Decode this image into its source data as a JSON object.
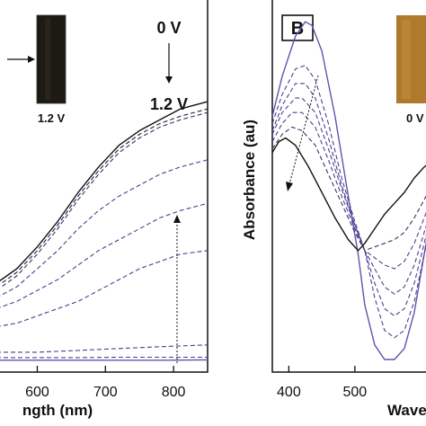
{
  "panel_b": {
    "label": "B",
    "inset_caption": "0 V"
  },
  "chart_data": [
    {
      "type": "line",
      "title": "",
      "xlabel": "ngth (nm)",
      "ylabel": "",
      "xlim": [
        540,
        850
      ],
      "ylim": [
        0,
        1
      ],
      "xticks": [
        600,
        700,
        800
      ],
      "grid": false,
      "inset_caption": "1.2 V",
      "voltage_start": "0 V",
      "voltage_end": "1.2 V",
      "series": [
        {
          "style": "solid",
          "color": "#111111",
          "x": [
            540,
            570,
            600,
            630,
            660,
            690,
            720,
            750,
            780,
            810,
            850
          ],
          "y": [
            0.22,
            0.26,
            0.32,
            0.39,
            0.47,
            0.54,
            0.6,
            0.64,
            0.67,
            0.7,
            0.72
          ]
        },
        {
          "style": "dashed",
          "color": "#222244",
          "x": [
            540,
            570,
            600,
            630,
            660,
            690,
            720,
            750,
            780,
            810,
            850
          ],
          "y": [
            0.21,
            0.25,
            0.31,
            0.38,
            0.46,
            0.53,
            0.59,
            0.63,
            0.66,
            0.68,
            0.7
          ]
        },
        {
          "style": "dashed",
          "color": "#333366",
          "x": [
            540,
            570,
            600,
            630,
            660,
            690,
            720,
            750,
            780,
            810,
            850
          ],
          "y": [
            0.2,
            0.24,
            0.3,
            0.37,
            0.45,
            0.52,
            0.58,
            0.62,
            0.65,
            0.67,
            0.69
          ]
        },
        {
          "style": "dashed",
          "color": "#4a3f8f",
          "x": [
            540,
            570,
            600,
            630,
            660,
            690,
            720,
            750,
            780,
            810,
            850
          ],
          "y": [
            0.18,
            0.21,
            0.26,
            0.31,
            0.37,
            0.42,
            0.46,
            0.49,
            0.52,
            0.54,
            0.56
          ]
        },
        {
          "style": "dashed",
          "color": "#4a3f8f",
          "x": [
            540,
            570,
            600,
            630,
            660,
            690,
            720,
            750,
            780,
            810,
            850
          ],
          "y": [
            0.15,
            0.17,
            0.2,
            0.23,
            0.27,
            0.31,
            0.34,
            0.37,
            0.4,
            0.42,
            0.44
          ]
        },
        {
          "style": "dashed",
          "color": "#4a3f8f",
          "x": [
            540,
            570,
            600,
            630,
            660,
            690,
            720,
            750,
            780,
            810,
            850
          ],
          "y": [
            0.1,
            0.11,
            0.13,
            0.15,
            0.17,
            0.2,
            0.23,
            0.26,
            0.28,
            0.3,
            0.31
          ]
        },
        {
          "style": "dashed",
          "color": "#4a3f8f",
          "x": [
            540,
            600,
            660,
            720,
            780,
            850
          ],
          "y": [
            0.03,
            0.03,
            0.035,
            0.04,
            0.045,
            0.05
          ]
        },
        {
          "style": "dashed",
          "color": "#4a3f8f",
          "x": [
            540,
            600,
            660,
            720,
            780,
            850
          ],
          "y": [
            0.015,
            0.015,
            0.015,
            0.016,
            0.016,
            0.016
          ]
        },
        {
          "style": "solid",
          "color": "#5b55b0",
          "x": [
            540,
            600,
            660,
            720,
            780,
            850
          ],
          "y": [
            0.008,
            0.008,
            0.008,
            0.008,
            0.008,
            0.009
          ]
        }
      ]
    },
    {
      "type": "line",
      "title": "",
      "xlabel": "Wave",
      "ylabel": "Absorbance (au)",
      "xlim": [
        375,
        620
      ],
      "ylim": [
        0,
        1
      ],
      "xticks": [
        400,
        500
      ],
      "grid": false,
      "series": [
        {
          "style": "solid",
          "color": "#5b55b0",
          "x": [
            375,
            390,
            410,
            425,
            435,
            450,
            470,
            490,
            505,
            515,
            530,
            545,
            560,
            575,
            590,
            605,
            620
          ],
          "y": [
            0.68,
            0.79,
            0.9,
            0.94,
            0.93,
            0.86,
            0.68,
            0.46,
            0.3,
            0.16,
            0.05,
            0.01,
            0.01,
            0.04,
            0.14,
            0.3,
            0.45
          ]
        },
        {
          "style": "dashed",
          "color": "#4a3f8f",
          "x": [
            375,
            390,
            410,
            425,
            440,
            460,
            480,
            500,
            515,
            530,
            545,
            560,
            575,
            590,
            605,
            620
          ],
          "y": [
            0.66,
            0.74,
            0.81,
            0.82,
            0.78,
            0.66,
            0.51,
            0.39,
            0.31,
            0.18,
            0.09,
            0.07,
            0.09,
            0.17,
            0.3,
            0.43
          ]
        },
        {
          "style": "dashed",
          "color": "#4a3f8f",
          "x": [
            375,
            390,
            410,
            425,
            440,
            460,
            480,
            500,
            515,
            530,
            545,
            560,
            575,
            590,
            605,
            620
          ],
          "y": [
            0.64,
            0.71,
            0.77,
            0.77,
            0.73,
            0.62,
            0.49,
            0.38,
            0.31,
            0.22,
            0.15,
            0.13,
            0.15,
            0.22,
            0.33,
            0.44
          ]
        },
        {
          "style": "dashed",
          "color": "#4a3f8f",
          "x": [
            375,
            390,
            410,
            420,
            440,
            460,
            480,
            500,
            515,
            530,
            545,
            560,
            575,
            590,
            605,
            620
          ],
          "y": [
            0.63,
            0.69,
            0.73,
            0.73,
            0.69,
            0.59,
            0.48,
            0.38,
            0.31,
            0.26,
            0.21,
            0.19,
            0.21,
            0.27,
            0.36,
            0.45
          ]
        },
        {
          "style": "dashed",
          "color": "#4a3f8f",
          "x": [
            375,
            390,
            405,
            420,
            440,
            460,
            480,
            500,
            515,
            530,
            545,
            560,
            575,
            590,
            605,
            620
          ],
          "y": [
            0.61,
            0.66,
            0.69,
            0.69,
            0.65,
            0.56,
            0.46,
            0.37,
            0.31,
            0.29,
            0.27,
            0.26,
            0.28,
            0.33,
            0.4,
            0.47
          ]
        },
        {
          "style": "dashed",
          "color": "#333366",
          "x": [
            375,
            390,
            405,
            420,
            440,
            460,
            480,
            500,
            515,
            530,
            545,
            560,
            575,
            590,
            605,
            620
          ],
          "y": [
            0.59,
            0.63,
            0.65,
            0.64,
            0.6,
            0.52,
            0.44,
            0.36,
            0.31,
            0.32,
            0.33,
            0.34,
            0.36,
            0.4,
            0.45,
            0.5
          ]
        },
        {
          "style": "solid",
          "color": "#111111",
          "x": [
            375,
            385,
            395,
            410,
            430,
            450,
            470,
            490,
            505,
            515,
            530,
            545,
            560,
            575,
            590,
            605,
            620
          ],
          "y": [
            0.58,
            0.61,
            0.62,
            0.6,
            0.54,
            0.47,
            0.4,
            0.34,
            0.31,
            0.33,
            0.37,
            0.41,
            0.44,
            0.47,
            0.51,
            0.54,
            0.56
          ]
        }
      ]
    }
  ]
}
